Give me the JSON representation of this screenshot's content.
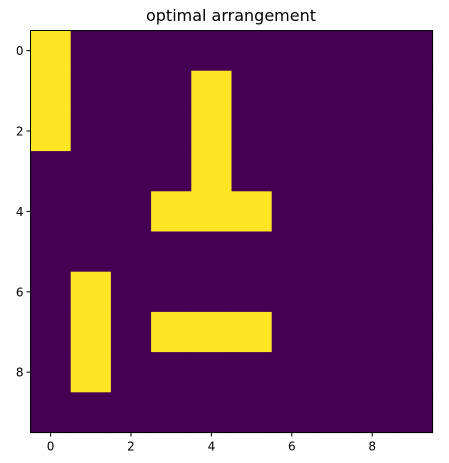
{
  "chart_data": {
    "type": "heatmap",
    "title": "optimal arrangement",
    "xlabel": "",
    "ylabel": "",
    "rows": 10,
    "cols": 10,
    "xlim": [
      -0.5,
      9.5
    ],
    "ylim": [
      9.5,
      -0.5
    ],
    "xticks": [
      0,
      2,
      4,
      6,
      8
    ],
    "yticks": [
      0,
      2,
      4,
      6,
      8
    ],
    "grid": false,
    "colors": {
      "low": "#440154",
      "high": "#fde725"
    },
    "values": [
      [
        1,
        0,
        0,
        0,
        0,
        0,
        0,
        0,
        0,
        0
      ],
      [
        1,
        0,
        0,
        0,
        1,
        0,
        0,
        0,
        0,
        0
      ],
      [
        1,
        0,
        0,
        0,
        1,
        0,
        0,
        0,
        0,
        0
      ],
      [
        0,
        0,
        0,
        0,
        1,
        0,
        0,
        0,
        0,
        0
      ],
      [
        0,
        0,
        0,
        1,
        1,
        1,
        0,
        0,
        0,
        0
      ],
      [
        0,
        0,
        0,
        0,
        0,
        0,
        0,
        0,
        0,
        0
      ],
      [
        0,
        1,
        0,
        0,
        0,
        0,
        0,
        0,
        0,
        0
      ],
      [
        0,
        1,
        0,
        1,
        1,
        1,
        0,
        0,
        0,
        0
      ],
      [
        0,
        1,
        0,
        0,
        0,
        0,
        0,
        0,
        0,
        0
      ],
      [
        0,
        0,
        0,
        0,
        0,
        0,
        0,
        0,
        0,
        0
      ]
    ]
  }
}
